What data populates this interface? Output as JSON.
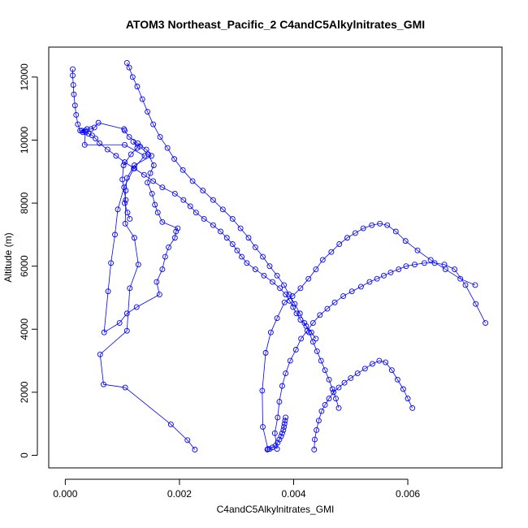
{
  "chart_data": {
    "type": "scatter",
    "title": "ATOM3 Northeast_Pacific_2 C4andC5Alkylnitrates_GMI",
    "xlabel": "C4andC5Alkylnitrates_GMI",
    "ylabel": "Altitude (m)",
    "xlim": [
      -0.00029,
      0.00765
    ],
    "ylim": [
      -400,
      12950
    ],
    "xticks": [
      0.0,
      0.002,
      0.004,
      0.006
    ],
    "xtick_labels": [
      "0.000",
      "0.002",
      "0.004",
      "0.006"
    ],
    "yticks": [
      0,
      2000,
      4000,
      6000,
      8000,
      10000,
      12000
    ],
    "ytick_labels": [
      "0",
      "2000",
      "4000",
      "6000",
      "8000",
      "10000",
      "12000"
    ],
    "grid": false,
    "legend": "none",
    "marker": "open-circle",
    "connected": true,
    "color": "#0000ff",
    "series": [
      {
        "x": [
          0.00227,
          0.00214,
          0.00185,
          0.00105,
          0.00067,
          0.00061,
          0.00108,
          0.00113,
          0.00128,
          0.00121,
          0.00105,
          0.00106,
          0.001,
          0.00102,
          0.00115,
          0.00126,
          0.00119,
          0.00131,
          0.00145,
          0.00155,
          0.00149,
          0.00144,
          0.00152,
          0.00157,
          0.00162,
          0.0017,
          0.00197,
          0.00194,
          0.00192,
          0.00181,
          0.00175,
          0.0017,
          0.0016,
          0.00165,
          0.00125,
          0.00108,
          0.00095,
          0.00068,
          0.00075,
          0.0008,
          0.00087,
          0.00092,
          0.00103,
          0.0012,
          0.00139,
          0.00104,
          0.00034,
          0.00035,
          0.00029,
          0.00038,
          0.00045,
          0.00051,
          0.00058,
          0.00103,
          0.00104,
          0.00112,
          0.00127,
          0.00142,
          0.00151,
          0.00121,
          0.00108,
          0.00106,
          0.00104,
          0.00109,
          0.00113
        ],
        "y": [
          180,
          480,
          980,
          2150,
          2250,
          3200,
          3950,
          5300,
          6050,
          6900,
          7350,
          8100,
          8750,
          9200,
          9550,
          9750,
          9950,
          9800,
          9550,
          9200,
          8950,
          8650,
          8300,
          7950,
          7700,
          7400,
          7200,
          7100,
          6900,
          6600,
          6300,
          5900,
          5500,
          5100,
          4700,
          4500,
          4200,
          3900,
          5200,
          6100,
          7000,
          7800,
          8500,
          9100,
          9500,
          9850,
          9850,
          10300,
          10300,
          10350,
          10350,
          10400,
          10550,
          10350,
          10300,
          10100,
          9900,
          9700,
          9500,
          9200,
          8800,
          8400,
          8000,
          7700,
          7500
        ]
      },
      {
        "x": [
          0.00013,
          0.00013,
          0.00014,
          0.00015,
          0.00017,
          0.00019,
          0.00022,
          0.00026,
          0.00031,
          0.00036,
          0.00041,
          0.00047,
          0.00053,
          0.0006,
          0.00074,
          0.00089,
          0.00104,
          0.00121,
          0.00138,
          0.00154,
          0.0017,
          0.00192,
          0.00207,
          0.00219,
          0.00229,
          0.00243,
          0.00259,
          0.00272,
          0.00283,
          0.00293,
          0.00301,
          0.00309,
          0.00318,
          0.00333,
          0.00348,
          0.00363,
          0.00376,
          0.00386,
          0.00393,
          0.00399,
          0.00405,
          0.00412,
          0.00422,
          0.00431,
          0.00439
        ],
        "y": [
          12250,
          12050,
          11750,
          11450,
          11100,
          10800,
          10500,
          10300,
          10250,
          10250,
          10200,
          10150,
          10050,
          9900,
          9700,
          9500,
          9300,
          9100,
          8900,
          8700,
          8500,
          8300,
          8100,
          7900,
          7700,
          7500,
          7300,
          7100,
          6900,
          6700,
          6500,
          6300,
          6100,
          5900,
          5700,
          5500,
          5300,
          5100,
          4900,
          4700,
          4500,
          4300,
          4100,
          3900,
          3700
        ]
      },
      {
        "x": [
          0.00108,
          0.00112,
          0.00118,
          0.00126,
          0.00135,
          0.00144,
          0.00154,
          0.00166,
          0.00179,
          0.00191,
          0.00206,
          0.00223,
          0.00241,
          0.00259,
          0.00276,
          0.00293,
          0.00307,
          0.00321,
          0.00333,
          0.00346,
          0.00358,
          0.00371,
          0.00383,
          0.00392,
          0.00402,
          0.00411,
          0.00419,
          0.00427,
          0.00434,
          0.00441,
          0.00448,
          0.00455,
          0.00462,
          0.00468,
          0.00474,
          0.00479
        ],
        "y": [
          12450,
          12300,
          12000,
          11700,
          11300,
          10900,
          10500,
          10100,
          9750,
          9400,
          9050,
          8700,
          8400,
          8100,
          7800,
          7500,
          7200,
          6900,
          6600,
          6300,
          6000,
          5700,
          5400,
          5100,
          4800,
          4500,
          4200,
          3900,
          3600,
          3300,
          3000,
          2700,
          2400,
          2100,
          1800,
          1500
        ]
      },
      {
        "x": [
          0.00355,
          0.00346,
          0.00345,
          0.00351,
          0.0036,
          0.00371,
          0.00384,
          0.00398,
          0.00412,
          0.00426,
          0.00439,
          0.00451,
          0.00466,
          0.0048,
          0.00494,
          0.00508,
          0.00522,
          0.00537,
          0.00551,
          0.00564,
          0.00579,
          0.00596,
          0.00617,
          0.0064,
          0.00666,
          0.00692,
          0.00718
        ],
        "y": [
          200,
          900,
          2050,
          3250,
          3900,
          4350,
          4850,
          5050,
          5300,
          5600,
          5900,
          6200,
          6450,
          6700,
          6900,
          7050,
          7200,
          7300,
          7350,
          7300,
          7100,
          6800,
          6500,
          6200,
          5900,
          5600,
          5400
        ]
      },
      {
        "x": [
          0.00371,
          0.00367,
          0.00372,
          0.00375,
          0.0038,
          0.00386,
          0.00394,
          0.00404,
          0.00413,
          0.00424,
          0.00434,
          0.00446,
          0.00459,
          0.00472,
          0.00487,
          0.00502,
          0.00518,
          0.00533,
          0.00546,
          0.00558,
          0.0057,
          0.00584,
          0.00597,
          0.00612,
          0.00629,
          0.00647,
          0.00664,
          0.00682,
          0.00701,
          0.00719,
          0.00736
        ],
        "y": [
          200,
          700,
          1200,
          1700,
          2200,
          2600,
          3000,
          3350,
          3700,
          3950,
          4200,
          4450,
          4650,
          4850,
          5050,
          5200,
          5350,
          5500,
          5600,
          5700,
          5800,
          5900,
          6000,
          6050,
          6100,
          6100,
          6050,
          5900,
          5400,
          4800,
          4200
        ]
      },
      {
        "x": [
          0.00436,
          0.00437,
          0.0044,
          0.00444,
          0.00449,
          0.00455,
          0.00462,
          0.0047,
          0.00479,
          0.00489,
          0.005,
          0.00512,
          0.00525,
          0.00538,
          0.0055,
          0.00561,
          0.00572,
          0.00582,
          0.00592,
          0.006,
          0.00608
        ],
        "y": [
          180,
          500,
          800,
          1100,
          1400,
          1600,
          1800,
          2000,
          2150,
          2300,
          2450,
          2600,
          2750,
          2900,
          3000,
          2950,
          2700,
          2400,
          2100,
          1800,
          1500
        ]
      },
      {
        "x": [
          0.00354,
          0.00358,
          0.00363,
          0.00368,
          0.00372,
          0.00375,
          0.00378,
          0.0038,
          0.00382,
          0.00383,
          0.00384,
          0.00385,
          0.00386
        ],
        "y": [
          180,
          200,
          250,
          300,
          400,
          500,
          600,
          700,
          800,
          900,
          1000,
          1100,
          1200
        ]
      }
    ]
  }
}
